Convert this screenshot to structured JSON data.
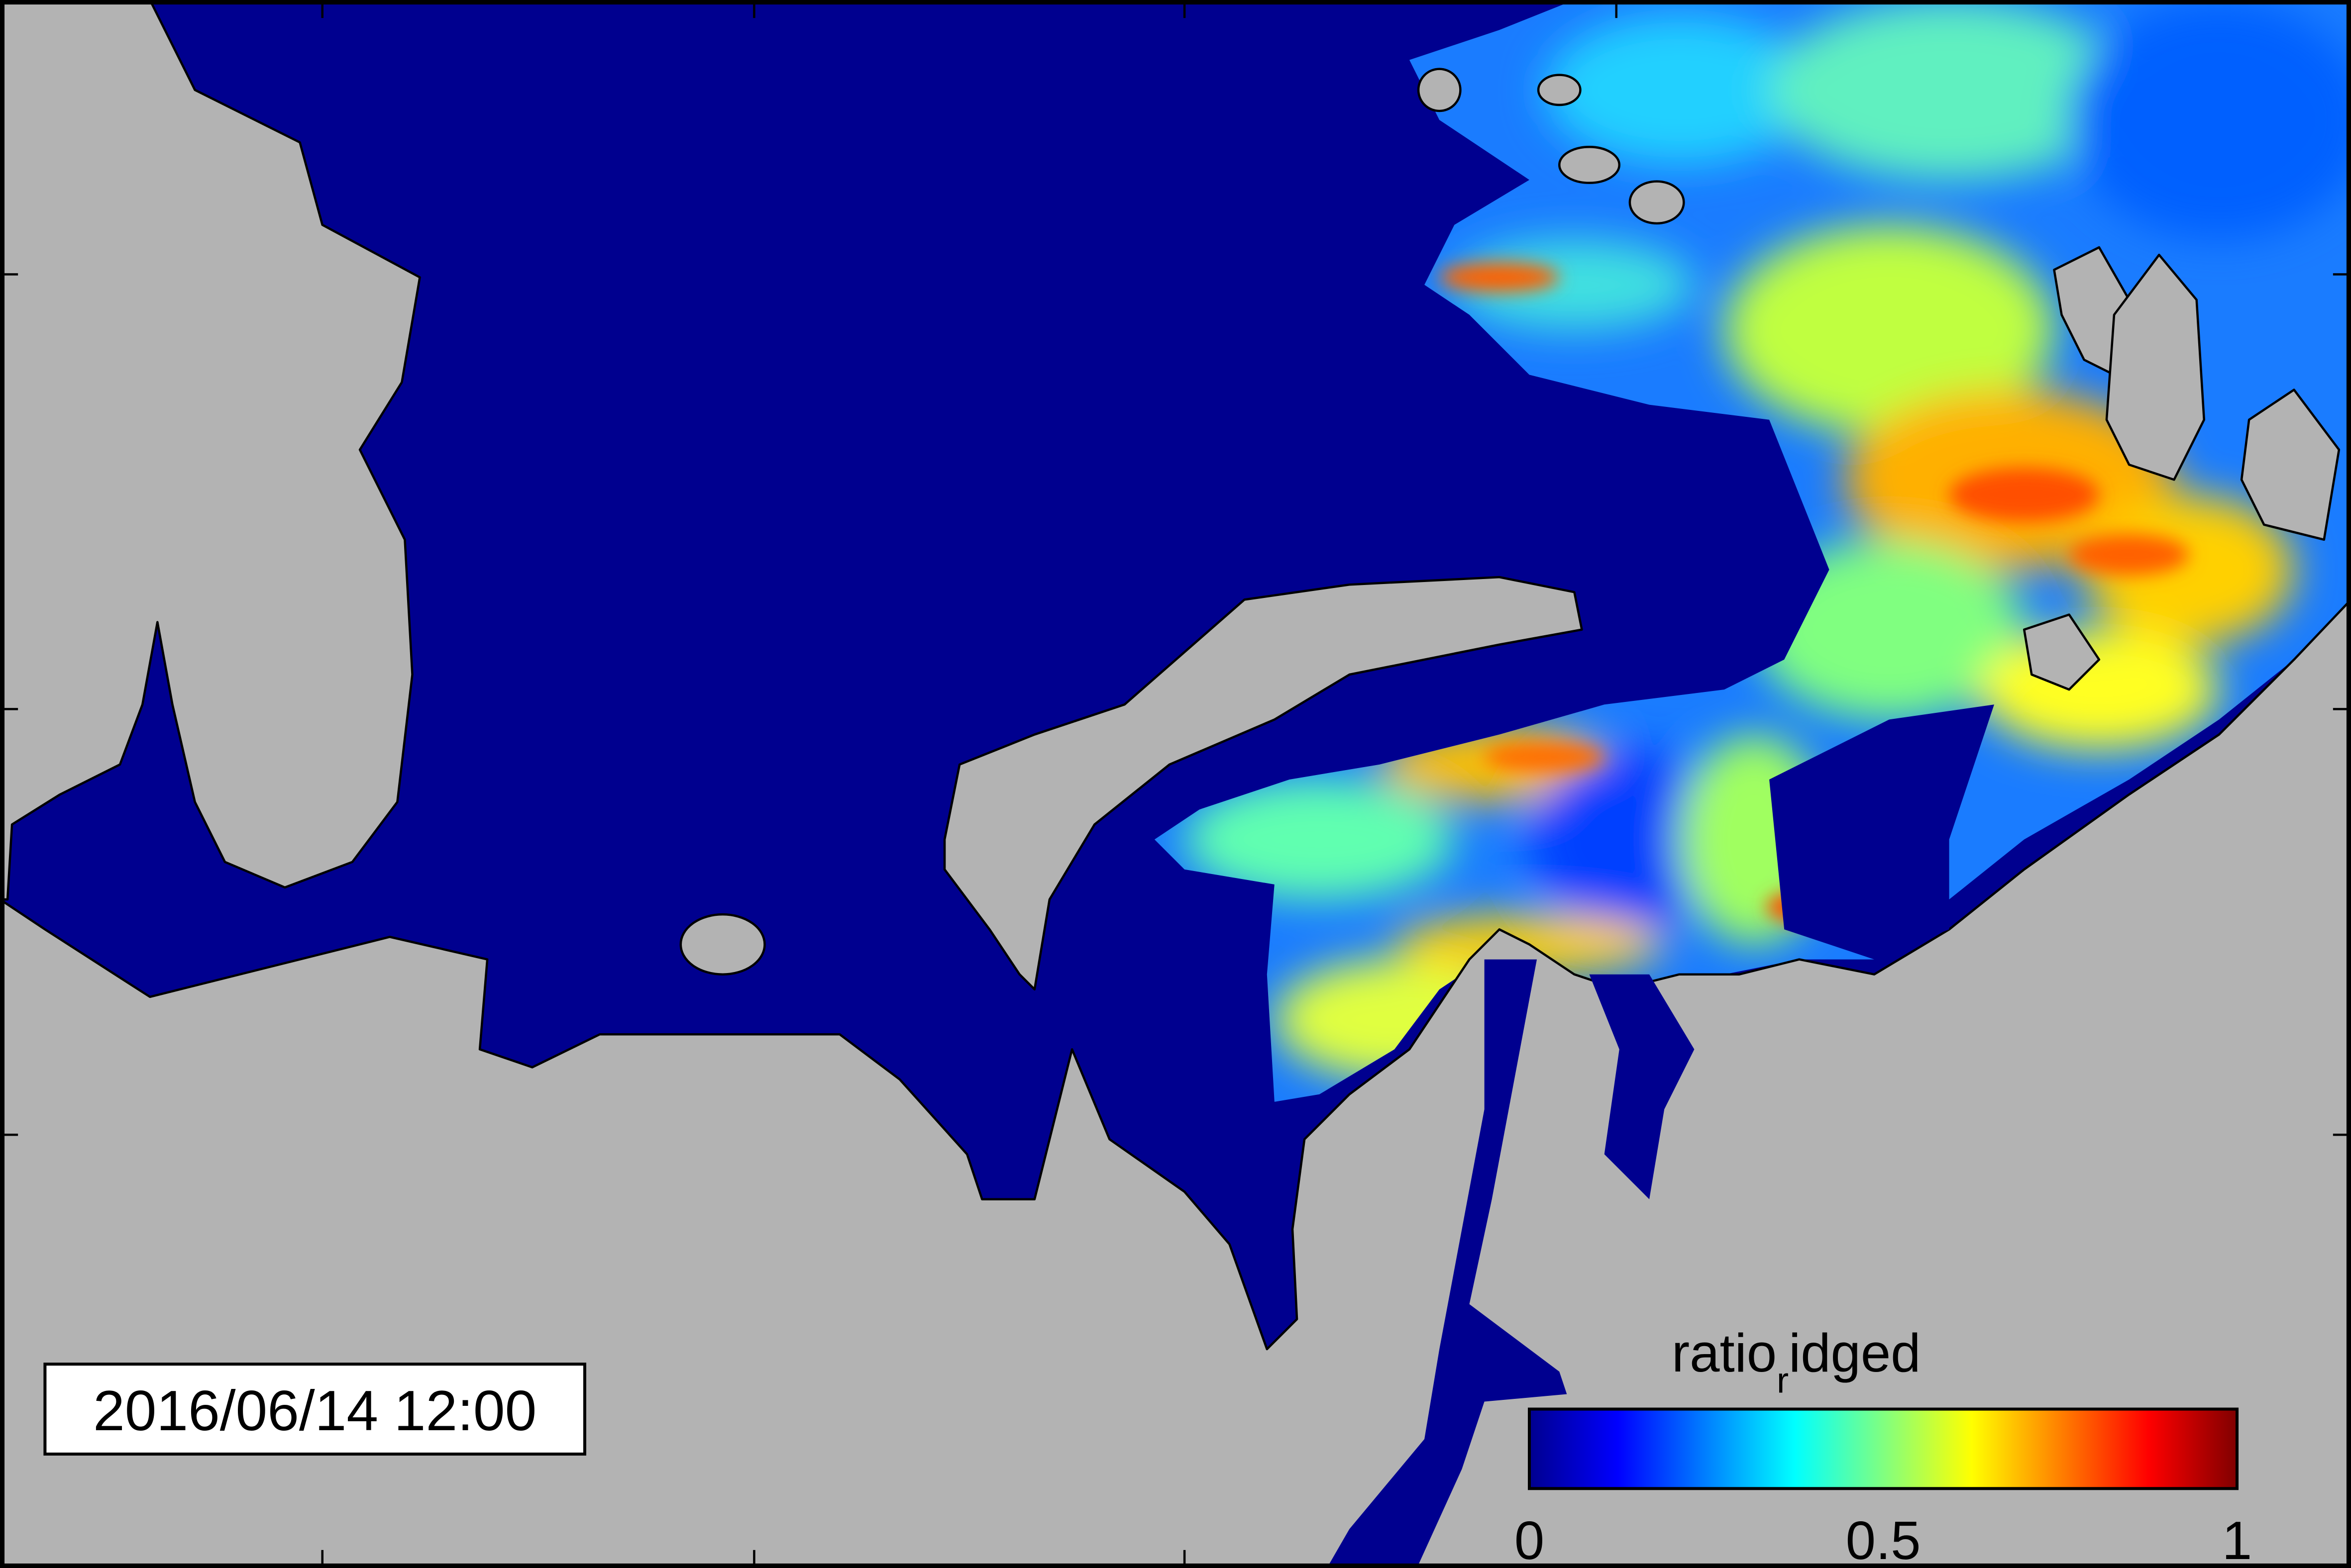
{
  "timestamp": "2016/06/14 12:00",
  "colorbar": {
    "label": {
      "text": "ratio",
      "subscript": "r",
      "suffix": "idged"
    },
    "clim": [
      0,
      1
    ],
    "ticks": [
      0,
      0.5,
      1
    ],
    "colormap": [
      "#00008f",
      "#0000ff",
      "#0080ff",
      "#00ffff",
      "#80ff80",
      "#ffff00",
      "#ff8000",
      "#ff0000",
      "#800000"
    ]
  }
}
